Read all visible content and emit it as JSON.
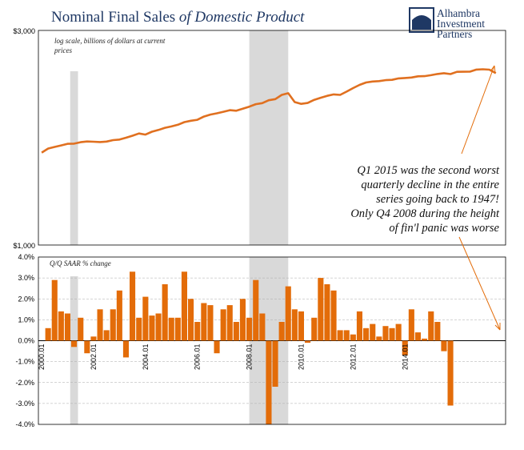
{
  "title_part1": "Nominal Final Sales ",
  "title_part2": "of Domestic Product",
  "logo": {
    "line1": "Alhambra",
    "line2": "Investment",
    "line3": "Partners"
  },
  "colors": {
    "series": "#e07020",
    "bar": "#e36c09",
    "recession": "#d9d9d9",
    "title": "#1f3864",
    "grid": "#aaaaaa"
  },
  "annotation": [
    "Q1 2015 was the second worst",
    "quarterly decline in the entire",
    "series going back to 1947!",
    "Only Q4 2008 during the height",
    "of fin'l panic was worse"
  ],
  "chart_data": [
    {
      "type": "line",
      "note_line1": "log scale, billions of dollars at current",
      "note_line2": "prices",
      "y_scale": "log",
      "ylim": [
        1000,
        3000
      ],
      "ytick_labels": [
        "$3,000",
        "$1,000"
      ],
      "recessions": [
        [
          "2001.1",
          "2001.4"
        ],
        [
          "2008.0",
          "2009.5"
        ]
      ],
      "x_start": 2000.0,
      "x_step": 0.25,
      "values": [
        1605,
        1639,
        1652,
        1665,
        1679,
        1680,
        1693,
        1699,
        1697,
        1694,
        1698,
        1711,
        1716,
        1732,
        1750,
        1770,
        1760,
        1786,
        1802,
        1822,
        1835,
        1851,
        1876,
        1889,
        1899,
        1930,
        1950,
        1963,
        1978,
        1994,
        1989,
        2010,
        2031,
        2057,
        2068,
        2098,
        2110,
        2157,
        2175,
        2079,
        2060,
        2069,
        2103,
        2125,
        2146,
        2162,
        2157,
        2193,
        2233,
        2270,
        2298,
        2310,
        2314,
        2326,
        2330,
        2347,
        2352,
        2357,
        2372,
        2374,
        2386,
        2400,
        2410,
        2399,
        2427,
        2428,
        2429,
        2455,
        2459,
        2454,
        2410
      ]
    },
    {
      "type": "bar",
      "label": "Q/Q SAAR % change",
      "ylim": [
        -4,
        4
      ],
      "ytick_labels": [
        "4.0%",
        "3.0%",
        "2.0%",
        "1.0%",
        "0.0%",
        "-1.0%",
        "-2.0%",
        "-3.0%",
        "-4.0%"
      ],
      "xtick_labels": [
        "2000.01",
        "2002.01",
        "2004.01",
        "2006.01",
        "2008.01",
        "2010.01",
        "2012.01",
        "2014.01"
      ],
      "x_start": 2000.0,
      "x_step": 0.25,
      "values": [
        0.6,
        2.9,
        1.4,
        1.3,
        -0.3,
        1.1,
        -0.6,
        0.2,
        1.5,
        0.5,
        1.5,
        2.4,
        -0.8,
        3.3,
        1.1,
        2.1,
        1.2,
        1.3,
        2.7,
        1.1,
        1.1,
        3.3,
        2.0,
        0.9,
        1.8,
        1.7,
        -0.6,
        1.5,
        1.7,
        0.9,
        2.0,
        1.1,
        2.9,
        1.3,
        -4.0,
        -2.2,
        0.9,
        2.6,
        1.5,
        1.4,
        -0.1,
        1.1,
        3.0,
        2.7,
        2.4,
        0.5,
        0.5,
        0.3,
        1.4,
        0.6,
        0.8,
        0.2,
        0.7,
        0.6,
        0.8,
        -0.7,
        1.5,
        0.4,
        0.1,
        1.4,
        0.9,
        -0.5,
        -3.1
      ]
    }
  ]
}
